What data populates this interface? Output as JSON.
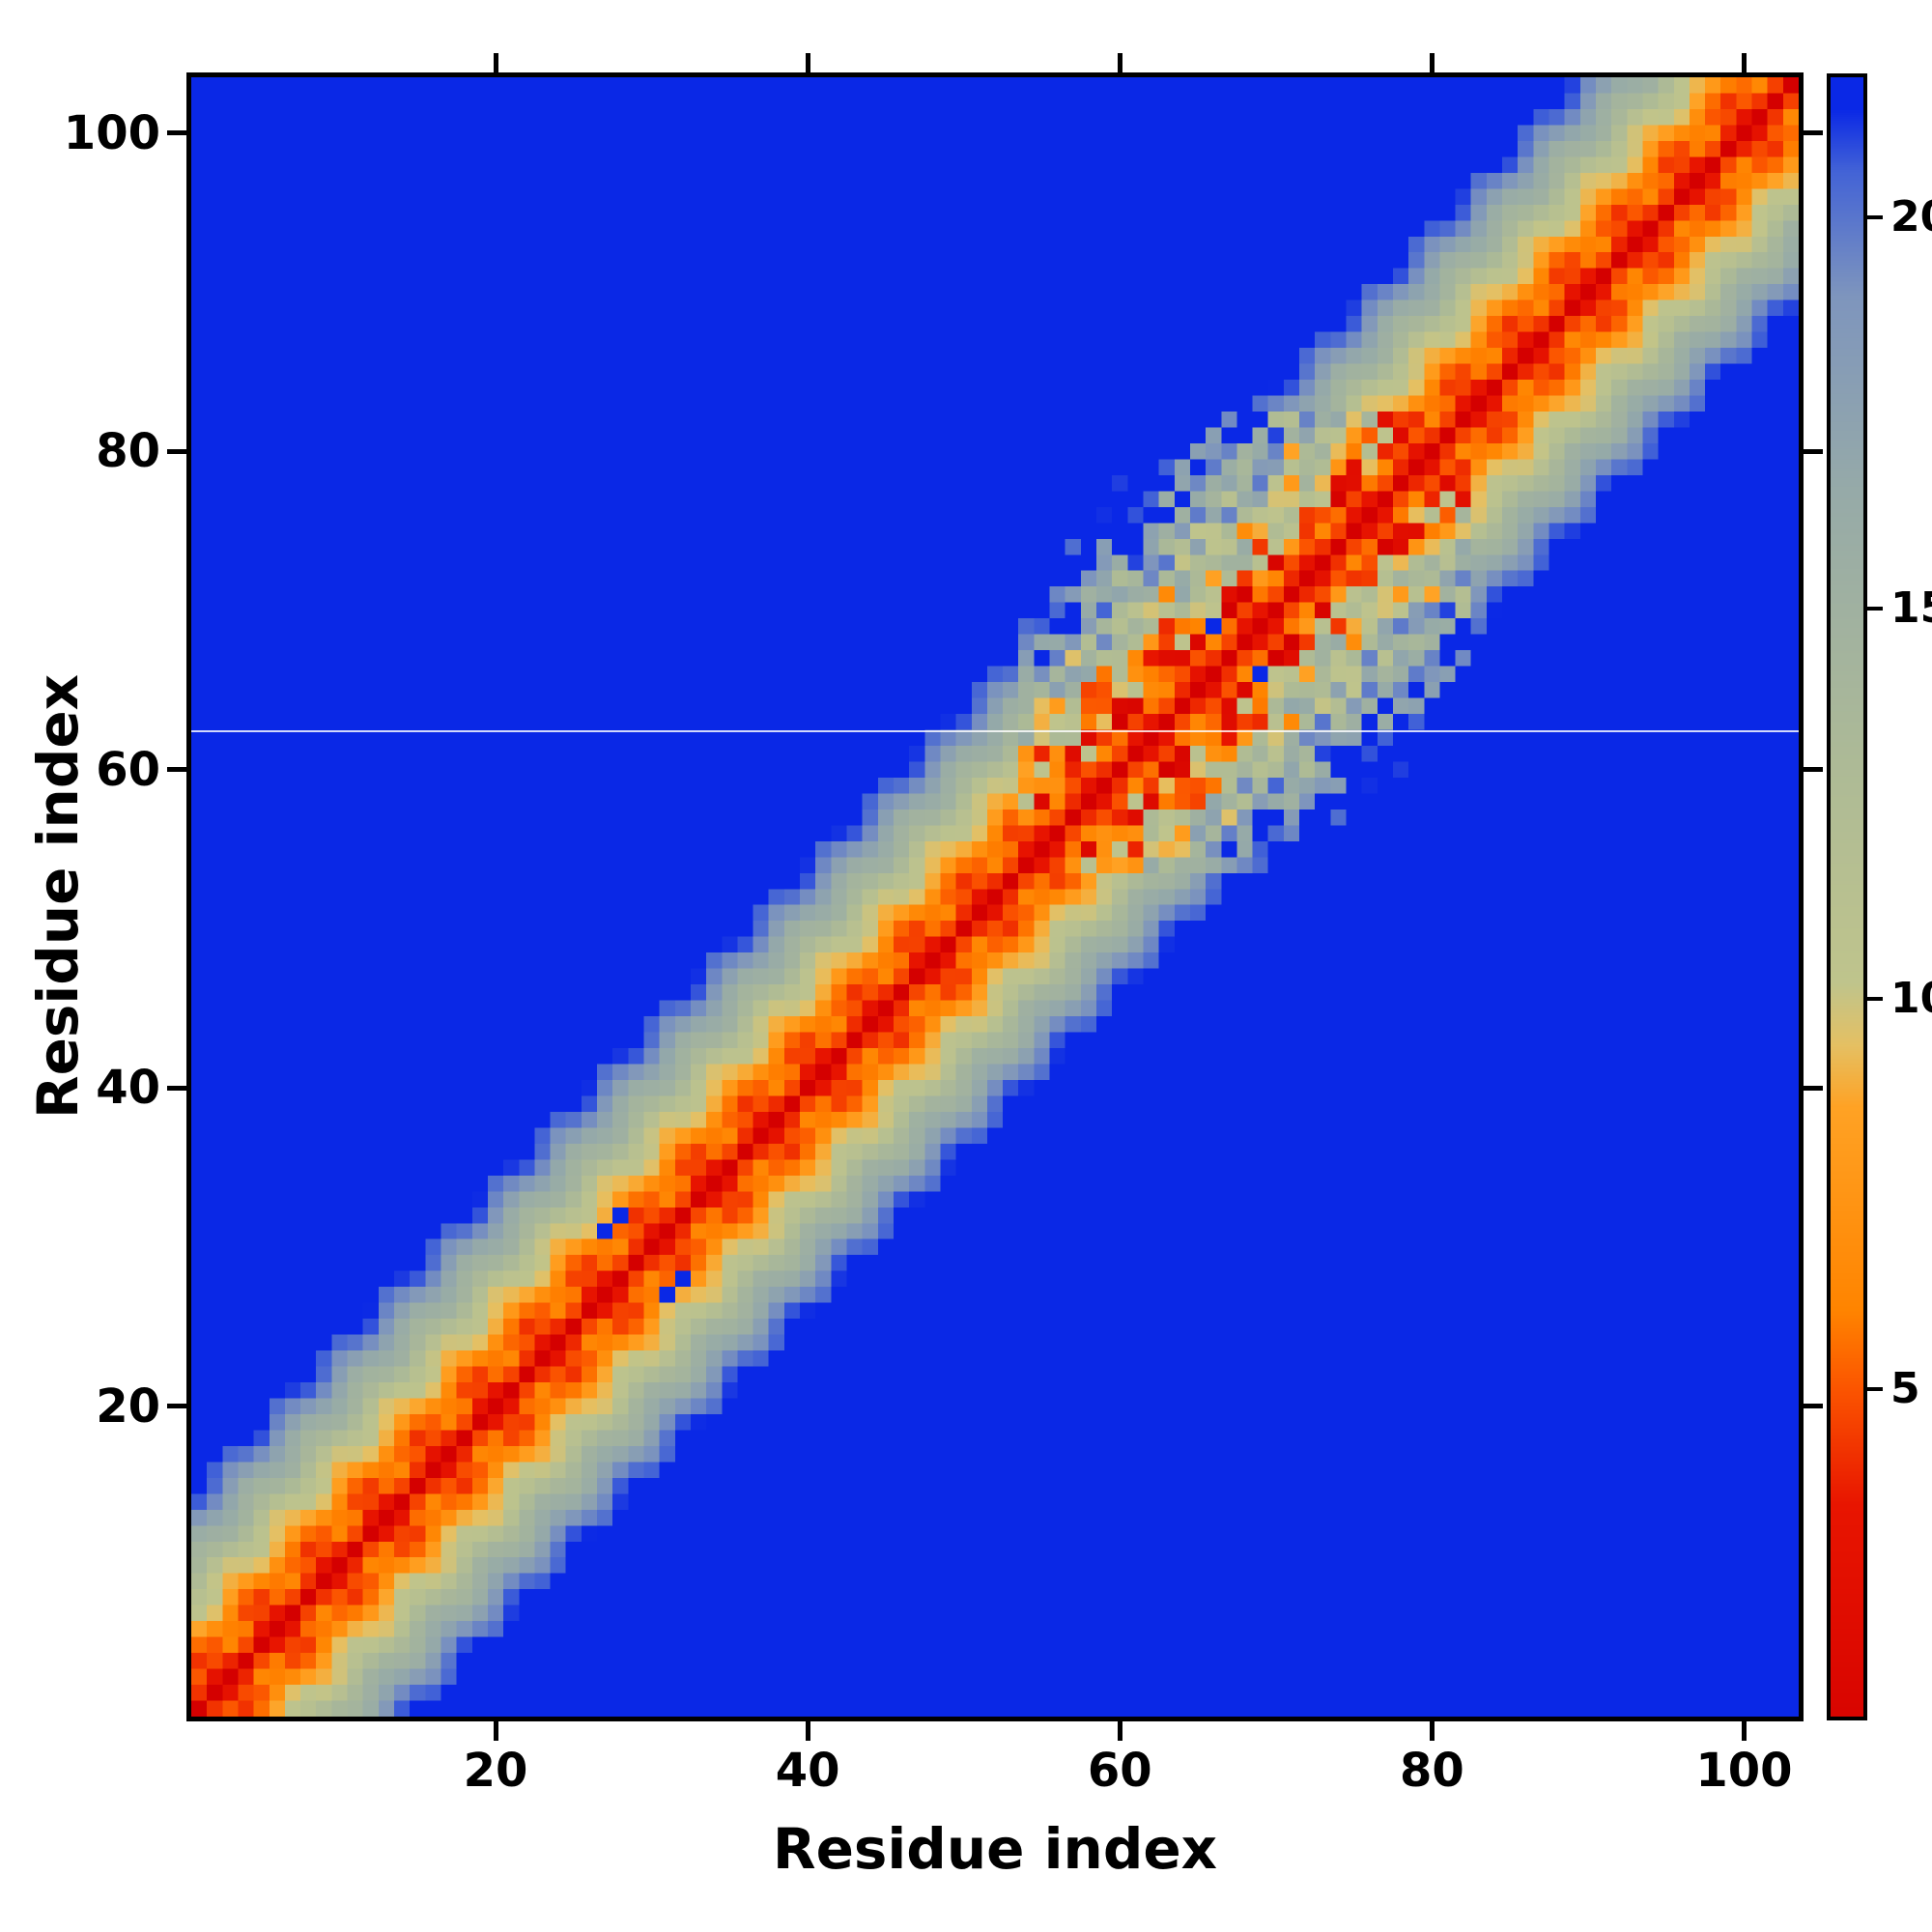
{
  "chart_data": {
    "type": "heatmap",
    "title": "",
    "xlabel": "Residue index",
    "ylabel": "Residue index",
    "n_residues": 103,
    "x_range": [
      1,
      103
    ],
    "y_range": [
      1,
      103
    ],
    "x_ticks": [
      20,
      40,
      60,
      80,
      100
    ],
    "y_ticks": [
      20,
      40,
      60,
      80,
      100
    ],
    "grid": false,
    "legend": "none",
    "colorbar": {
      "min": 0.8,
      "max": 21.8,
      "ticks": [
        5,
        10,
        15,
        20
      ],
      "position": "right"
    },
    "colormap_stops": [
      [
        0.0,
        "#d40000"
      ],
      [
        3.5,
        "#e81500"
      ],
      [
        5.0,
        "#fb5500"
      ],
      [
        6.0,
        "#ff8400"
      ],
      [
        8.6,
        "#ffa224"
      ],
      [
        9.4,
        "#e5c063"
      ],
      [
        10.2,
        "#bfc48c"
      ],
      [
        13.0,
        "#adba96"
      ],
      [
        16.5,
        "#96aaa8"
      ],
      [
        19.0,
        "#7e95bd"
      ],
      [
        20.6,
        "#4363d6"
      ],
      [
        21.4,
        "#0a28e6"
      ],
      [
        21.8,
        "#0a28e6"
      ]
    ],
    "value_model": {
      "description": "Residue-residue distance matrix: red near diagonal (small distance), banded helical pattern widening to blue background; disordered/noisy band region between residues ~54-82; values clamped at colorbar max.",
      "rise_per_residue": 1.5,
      "helix_radius": 2.3,
      "turn_deg_per_residue": 100,
      "texture_amp": 0.9,
      "texture_freq": 0.9,
      "noise_region": [
        54,
        82
      ],
      "noise_amp": 11,
      "clamp_max": 21.8
    },
    "anomalies": {
      "blue_cells": [
        [
          27,
          31
        ],
        [
          31,
          27
        ],
        [
          28,
          32
        ],
        [
          32,
          28
        ],
        [
          66,
          69
        ],
        [
          69,
          66
        ]
      ],
      "orange_cells": [
        [
          63,
          71
        ],
        [
          71,
          63
        ],
        [
          62,
          65
        ],
        [
          65,
          62
        ]
      ],
      "orange_cell_value": 6.5,
      "white_line_after_row": 62
    }
  }
}
